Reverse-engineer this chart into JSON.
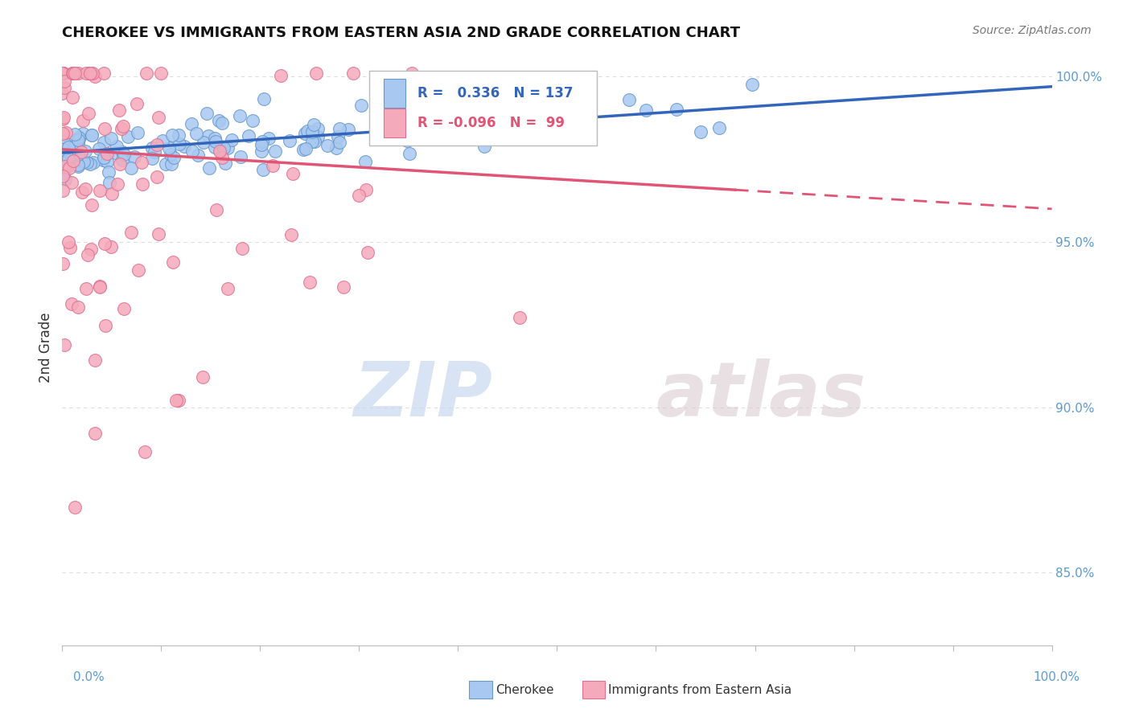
{
  "title": "CHEROKEE VS IMMIGRANTS FROM EASTERN ASIA 2ND GRADE CORRELATION CHART",
  "source": "Source: ZipAtlas.com",
  "ylabel": "2nd Grade",
  "legend_labels": [
    "Cherokee",
    "Immigrants from Eastern Asia"
  ],
  "blue_color": "#A8C8F0",
  "pink_color": "#F5AABB",
  "blue_edge_color": "#6699CC",
  "pink_edge_color": "#E07090",
  "blue_line_color": "#3366BB",
  "pink_line_color": "#E05575",
  "R_blue": 0.336,
  "N_blue": 137,
  "R_pink": -0.096,
  "N_pink": 99,
  "xlim": [
    0.0,
    1.0
  ],
  "ylim": [
    0.828,
    1.008
  ],
  "yticks": [
    0.85,
    0.9,
    0.95,
    1.0
  ],
  "ytick_labels": [
    "85.0%",
    "90.0%",
    "95.0%",
    "100.0%"
  ],
  "background_color": "#FFFFFF",
  "grid_color": "#DDDDDD",
  "title_fontsize": 13,
  "axis_label_color": "#5B9BD5",
  "watermark_zip": "ZIP",
  "watermark_atlas": "atlas",
  "marker_size": 130
}
